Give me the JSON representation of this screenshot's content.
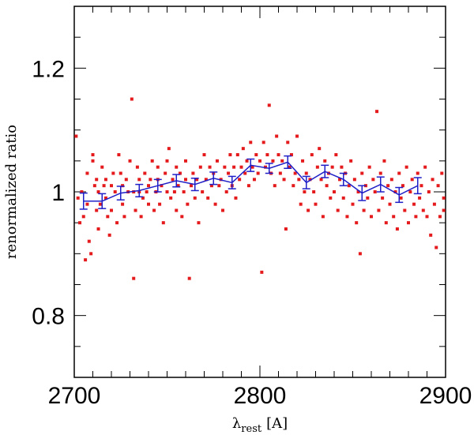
{
  "chart_data": {
    "type": "scatter",
    "title": "",
    "xlabel_main": "λ",
    "xlabel_sub": "rest",
    "xlabel_unit": "[A]",
    "ylabel": "renormalized ratio",
    "xlim": [
      2700,
      2900
    ],
    "ylim": [
      0.7,
      1.3
    ],
    "x_ticks": [
      "2700",
      "2800",
      "2900"
    ],
    "y_ticks": [
      "0.8",
      "1",
      "1.2"
    ],
    "y_tick_values": [
      0.8,
      1.0,
      1.2
    ],
    "grid": false,
    "colors": {
      "scatter": "#e41a1c",
      "binned": "#1f1fc8"
    },
    "series": [
      {
        "type": "scatter",
        "points": [
          [
            2701,
            1.09
          ],
          [
            2702,
            0.99
          ],
          [
            2703,
            0.95
          ],
          [
            2704,
            1.0
          ],
          [
            2705,
            0.96
          ],
          [
            2706,
            0.89
          ],
          [
            2707,
            1.03
          ],
          [
            2707,
            0.98
          ],
          [
            2708,
            0.92
          ],
          [
            2709,
            0.9
          ],
          [
            2710,
            1.05
          ],
          [
            2710,
            1.06
          ],
          [
            2711,
            1.01
          ],
          [
            2712,
            0.97
          ],
          [
            2712,
            1.02
          ],
          [
            2713,
            0.94
          ],
          [
            2713,
            1.0
          ],
          [
            2714,
            0.98
          ],
          [
            2715,
            1.04
          ],
          [
            2716,
            1.01
          ],
          [
            2717,
            0.99
          ],
          [
            2717,
            1.02
          ],
          [
            2718,
            0.96
          ],
          [
            2719,
            0.93
          ],
          [
            2720,
            0.97
          ],
          [
            2720,
            1.01
          ],
          [
            2721,
            1.03
          ],
          [
            2722,
            1.0
          ],
          [
            2723,
            0.95
          ],
          [
            2724,
            1.06
          ],
          [
            2725,
            1.03
          ],
          [
            2726,
            0.98
          ],
          [
            2726,
            1.01
          ],
          [
            2727,
            0.96
          ],
          [
            2728,
            1.02
          ],
          [
            2729,
            1.0
          ],
          [
            2730,
            1.05
          ],
          [
            2731,
            1.15
          ],
          [
            2732,
            1.0
          ],
          [
            2732,
            0.86
          ],
          [
            2733,
            0.97
          ],
          [
            2734,
            1.04
          ],
          [
            2735,
            1.02
          ],
          [
            2735,
            1.0
          ],
          [
            2736,
            0.96
          ],
          [
            2737,
            0.99
          ],
          [
            2738,
            1.03
          ],
          [
            2739,
            1.0
          ],
          [
            2740,
            1.01
          ],
          [
            2740,
            0.98
          ],
          [
            2741,
            1.02
          ],
          [
            2742,
            1.05
          ],
          [
            2743,
            0.97
          ],
          [
            2744,
            1.0
          ],
          [
            2745,
            1.02
          ],
          [
            2745,
            1.04
          ],
          [
            2746,
            0.98
          ],
          [
            2747,
            1.01
          ],
          [
            2748,
            0.95
          ],
          [
            2749,
            1.03
          ],
          [
            2750,
            1.0
          ],
          [
            2750,
            1.05
          ],
          [
            2751,
            1.07
          ],
          [
            2752,
            0.99
          ],
          [
            2753,
            1.02
          ],
          [
            2754,
            1.0
          ],
          [
            2755,
            0.97
          ],
          [
            2755,
            1.04
          ],
          [
            2756,
            1.01
          ],
          [
            2757,
            1.03
          ],
          [
            2758,
            0.96
          ],
          [
            2759,
            1.0
          ],
          [
            2760,
            1.02
          ],
          [
            2760,
            1.05
          ],
          [
            2761,
            0.98
          ],
          [
            2762,
            0.86
          ],
          [
            2763,
            1.01
          ],
          [
            2764,
            1.03
          ],
          [
            2765,
            0.99
          ],
          [
            2766,
            1.02
          ],
          [
            2767,
            0.95
          ],
          [
            2768,
            1.04
          ],
          [
            2769,
            1.0
          ],
          [
            2770,
            1.06
          ],
          [
            2771,
            1.02
          ],
          [
            2772,
            0.99
          ],
          [
            2773,
            1.04
          ],
          [
            2774,
            1.01
          ],
          [
            2775,
            1.03
          ],
          [
            2776,
            0.98
          ],
          [
            2777,
            1.05
          ],
          [
            2778,
            1.01
          ],
          [
            2779,
            1.02
          ],
          [
            2780,
            0.97
          ],
          [
            2781,
            1.04
          ],
          [
            2782,
            1.0
          ],
          [
            2783,
            1.03
          ],
          [
            2784,
            1.06
          ],
          [
            2785,
            1.01
          ],
          [
            2786,
            1.04
          ],
          [
            2787,
            0.99
          ],
          [
            2788,
            1.06
          ],
          [
            2789,
            1.02
          ],
          [
            2790,
            1.04
          ],
          [
            2791,
            1.07
          ],
          [
            2792,
            1.03
          ],
          [
            2793,
            1.05
          ],
          [
            2794,
            1.01
          ],
          [
            2795,
            1.08
          ],
          [
            2796,
            1.04
          ],
          [
            2797,
            1.02
          ],
          [
            2798,
            1.06
          ],
          [
            2799,
            1.03
          ],
          [
            2800,
            1.05
          ],
          [
            2801,
            0.87
          ],
          [
            2802,
            1.08
          ],
          [
            2803,
            1.04
          ],
          [
            2804,
            1.06
          ],
          [
            2805,
            1.14
          ],
          [
            2806,
            1.03
          ],
          [
            2807,
            1.05
          ],
          [
            2808,
            1.01
          ],
          [
            2809,
            1.09
          ],
          [
            2810,
            1.06
          ],
          [
            2811,
            1.03
          ],
          [
            2812,
            1.05
          ],
          [
            2813,
            1.02
          ],
          [
            2814,
            0.94
          ],
          [
            2815,
            1.08
          ],
          [
            2816,
            1.04
          ],
          [
            2817,
            1.06
          ],
          [
            2818,
            1.01
          ],
          [
            2819,
            1.03
          ],
          [
            2820,
            1.09
          ],
          [
            2821,
            1.02
          ],
          [
            2822,
            0.98
          ],
          [
            2823,
            1.05
          ],
          [
            2824,
            1.0
          ],
          [
            2825,
            1.03
          ],
          [
            2826,
            0.97
          ],
          [
            2827,
            1.02
          ],
          [
            2828,
            1.06
          ],
          [
            2829,
            1.0
          ],
          [
            2830,
            0.98
          ],
          [
            2831,
            1.04
          ],
          [
            2832,
            1.07
          ],
          [
            2833,
            1.02
          ],
          [
            2834,
            0.96
          ],
          [
            2835,
            1.05
          ],
          [
            2836,
            1.01
          ],
          [
            2837,
            1.03
          ],
          [
            2838,
            0.99
          ],
          [
            2839,
            1.04
          ],
          [
            2840,
            1.0
          ],
          [
            2841,
            1.06
          ],
          [
            2842,
            0.97
          ],
          [
            2843,
            1.02
          ],
          [
            2844,
            1.04
          ],
          [
            2845,
            0.99
          ],
          [
            2846,
            1.03
          ],
          [
            2847,
            0.96
          ],
          [
            2848,
            1.01
          ],
          [
            2849,
            1.05
          ],
          [
            2850,
            0.98
          ],
          [
            2851,
            1.02
          ],
          [
            2852,
            0.95
          ],
          [
            2853,
            1.0
          ],
          [
            2854,
            0.9
          ],
          [
            2855,
            1.03
          ],
          [
            2856,
            0.97
          ],
          [
            2857,
            1.01
          ],
          [
            2858,
            0.99
          ],
          [
            2859,
            1.04
          ],
          [
            2860,
            0.96
          ],
          [
            2861,
            1.02
          ],
          [
            2862,
            1.0
          ],
          [
            2863,
            1.13
          ],
          [
            2864,
            0.97
          ],
          [
            2865,
            1.03
          ],
          [
            2866,
            0.99
          ],
          [
            2867,
            1.05
          ],
          [
            2868,
            0.95
          ],
          [
            2869,
            1.01
          ],
          [
            2870,
            0.98
          ],
          [
            2871,
            1.02
          ],
          [
            2872,
            0.96
          ],
          [
            2873,
            1.0
          ],
          [
            2874,
            0.94
          ],
          [
            2875,
            1.03
          ],
          [
            2876,
            0.99
          ],
          [
            2877,
            1.01
          ],
          [
            2878,
            0.97
          ],
          [
            2879,
            1.04
          ],
          [
            2880,
            0.95
          ],
          [
            2881,
            1.0
          ],
          [
            2882,
            1.02
          ],
          [
            2883,
            0.98
          ],
          [
            2884,
            0.96
          ],
          [
            2885,
            1.03
          ],
          [
            2886,
            0.99
          ],
          [
            2887,
            1.01
          ],
          [
            2888,
            0.97
          ],
          [
            2889,
            1.04
          ],
          [
            2890,
            0.96
          ],
          [
            2891,
            1.0
          ],
          [
            2892,
            0.93
          ],
          [
            2893,
            1.02
          ],
          [
            2894,
            0.98
          ],
          [
            2895,
            0.91
          ],
          [
            2896,
            1.01
          ],
          [
            2897,
            0.96
          ],
          [
            2898,
            1.03
          ],
          [
            2899,
            0.99
          ],
          [
            2899,
            0.97
          ]
        ]
      },
      {
        "type": "line_errorbar",
        "x": [
          2705,
          2715,
          2725,
          2735,
          2745,
          2755,
          2765,
          2775,
          2785,
          2795,
          2805,
          2815,
          2825,
          2835,
          2845,
          2855,
          2865,
          2875,
          2885
        ],
        "y": [
          0.985,
          0.985,
          0.998,
          1.002,
          1.01,
          1.018,
          1.012,
          1.022,
          1.015,
          1.043,
          1.038,
          1.048,
          1.015,
          1.033,
          1.02,
          0.998,
          1.012,
          0.995,
          1.01
        ],
        "err": [
          0.013,
          0.012,
          0.011,
          0.01,
          0.01,
          0.01,
          0.01,
          0.01,
          0.01,
          0.01,
          0.008,
          0.01,
          0.01,
          0.01,
          0.01,
          0.012,
          0.012,
          0.012,
          0.013
        ]
      }
    ]
  }
}
